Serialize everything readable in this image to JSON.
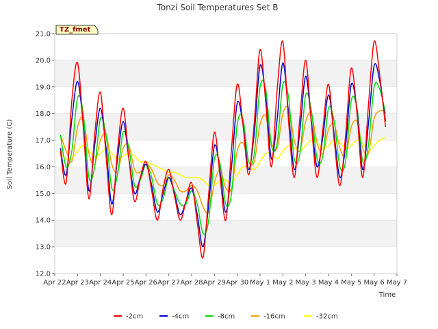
{
  "chart_data": {
    "type": "line",
    "title": "Tonzi Soil Temperatures Set B",
    "xlabel": "Time",
    "ylabel": "Soil Temperature (C)",
    "badge": "TZ_fmet",
    "xlim": [
      0,
      15
    ],
    "ylim": [
      12.0,
      21.0
    ],
    "x_tick_labels": [
      "Apr 22",
      "Apr 23",
      "Apr 24",
      "Apr 25",
      "Apr 26",
      "Apr 27",
      "Apr 28",
      "Apr 29",
      "Apr 30",
      "May 1",
      "May 2",
      "May 3",
      "May 4",
      "May 5",
      "May 6",
      "May 7"
    ],
    "y_ticks": [
      12.0,
      13.0,
      14.0,
      15.0,
      16.0,
      17.0,
      18.0,
      19.0,
      20.0,
      21.0
    ],
    "y_tick_labels": [
      "12.0",
      "13.0",
      "14.0",
      "15.0",
      "16.0",
      "17.0",
      "18.0",
      "19.0",
      "20.0",
      "21.0"
    ],
    "grid": "horizontal bands",
    "legend_placement": "bottom",
    "series": [
      {
        "name": "-2cm",
        "color": "#ff0000",
        "x_start": 0.25,
        "x_step": 0.25,
        "values": [
          16.6,
          15.4,
          18.5,
          19.9,
          17.5,
          14.8,
          17.2,
          18.8,
          16.4,
          14.2,
          16.6,
          18.2,
          16.3,
          14.7,
          15.6,
          16.2,
          15.1,
          14.0,
          15.2,
          15.9,
          14.9,
          14.0,
          14.7,
          15.4,
          13.9,
          12.6,
          15.0,
          17.3,
          15.6,
          14.0,
          16.7,
          19.1,
          17.6,
          15.7,
          17.7,
          20.4,
          18.4,
          16.0,
          18.9,
          20.7,
          17.7,
          15.6,
          17.9,
          20.0,
          17.6,
          15.6,
          17.4,
          19.1,
          17.0,
          15.3,
          17.2,
          19.7,
          18.0,
          15.6,
          18.3,
          20.7,
          19.4,
          17.5
        ]
      },
      {
        "name": "-4cm",
        "color": "#0000cc",
        "x_start": 0.25,
        "x_step": 0.25,
        "values": [
          16.7,
          15.7,
          17.8,
          19.2,
          17.6,
          15.1,
          16.8,
          18.2,
          16.7,
          14.6,
          16.3,
          17.7,
          16.3,
          15.0,
          15.6,
          16.1,
          15.3,
          14.3,
          15.0,
          15.6,
          15.0,
          14.2,
          14.7,
          15.2,
          14.2,
          13.0,
          14.6,
          16.8,
          15.8,
          14.3,
          16.0,
          18.4,
          17.6,
          15.9,
          17.3,
          19.8,
          18.6,
          16.3,
          17.8,
          19.9,
          18.0,
          15.9,
          17.4,
          19.4,
          17.7,
          16.0,
          17.1,
          18.7,
          17.2,
          15.6,
          16.8,
          19.1,
          18.1,
          15.9,
          17.6,
          19.8,
          19.2,
          17.7
        ]
      },
      {
        "name": "-8cm",
        "color": "#00dd00",
        "x_start": 0.25,
        "x_step": 0.25,
        "values": [
          17.2,
          16.0,
          16.6,
          18.6,
          18.0,
          15.6,
          16.0,
          17.8,
          17.2,
          15.2,
          15.7,
          17.3,
          16.7,
          15.3,
          15.5,
          16.1,
          15.6,
          14.6,
          14.8,
          15.6,
          15.1,
          14.6,
          14.6,
          15.1,
          14.6,
          13.5,
          14.0,
          16.3,
          16.1,
          14.6,
          15.0,
          17.6,
          17.8,
          16.2,
          16.5,
          19.0,
          18.9,
          16.8,
          16.9,
          19.1,
          18.6,
          16.3,
          16.5,
          18.7,
          18.1,
          16.3,
          16.4,
          18.2,
          17.7,
          16.0,
          16.2,
          18.5,
          18.2,
          16.2,
          16.8,
          19.0,
          18.9,
          18.0
        ]
      },
      {
        "name": "-16cm",
        "color": "#ff9900",
        "x_start": 0.25,
        "x_step": 0.25,
        "values": [
          17.2,
          16.6,
          16.2,
          17.5,
          17.8,
          16.5,
          16.1,
          17.0,
          17.2,
          16.1,
          15.8,
          16.7,
          16.8,
          15.9,
          15.8,
          16.1,
          15.9,
          15.4,
          15.3,
          15.7,
          15.5,
          15.1,
          15.1,
          15.3,
          15.1,
          14.5,
          14.3,
          15.4,
          15.9,
          15.2,
          15.2,
          16.6,
          16.9,
          16.2,
          16.2,
          17.6,
          17.9,
          16.9,
          16.7,
          18.0,
          18.2,
          17.0,
          16.6,
          17.7,
          18.0,
          16.9,
          16.5,
          17.4,
          17.6,
          16.7,
          16.4,
          17.5,
          17.7,
          16.7,
          16.5,
          17.8,
          18.1,
          18.1
        ]
      },
      {
        "name": "-32cm",
        "color": "#ffff00",
        "x_start": 0.25,
        "x_step": 0.25,
        "values": [
          16.5,
          16.3,
          16.3,
          16.6,
          16.8,
          16.6,
          16.4,
          16.5,
          16.7,
          16.5,
          16.3,
          16.4,
          16.5,
          16.4,
          16.2,
          16.2,
          16.1,
          16.0,
          15.9,
          15.8,
          15.8,
          15.7,
          15.6,
          15.6,
          15.6,
          15.5,
          15.3,
          15.3,
          15.5,
          15.5,
          15.4,
          15.7,
          16.0,
          16.0,
          15.9,
          16.2,
          16.5,
          16.5,
          16.3,
          16.6,
          16.8,
          16.7,
          16.6,
          16.8,
          17.0,
          16.9,
          16.7,
          16.8,
          17.0,
          16.9,
          16.7,
          16.8,
          17.0,
          16.9,
          16.6,
          16.8,
          17.0,
          17.1
        ]
      }
    ]
  }
}
